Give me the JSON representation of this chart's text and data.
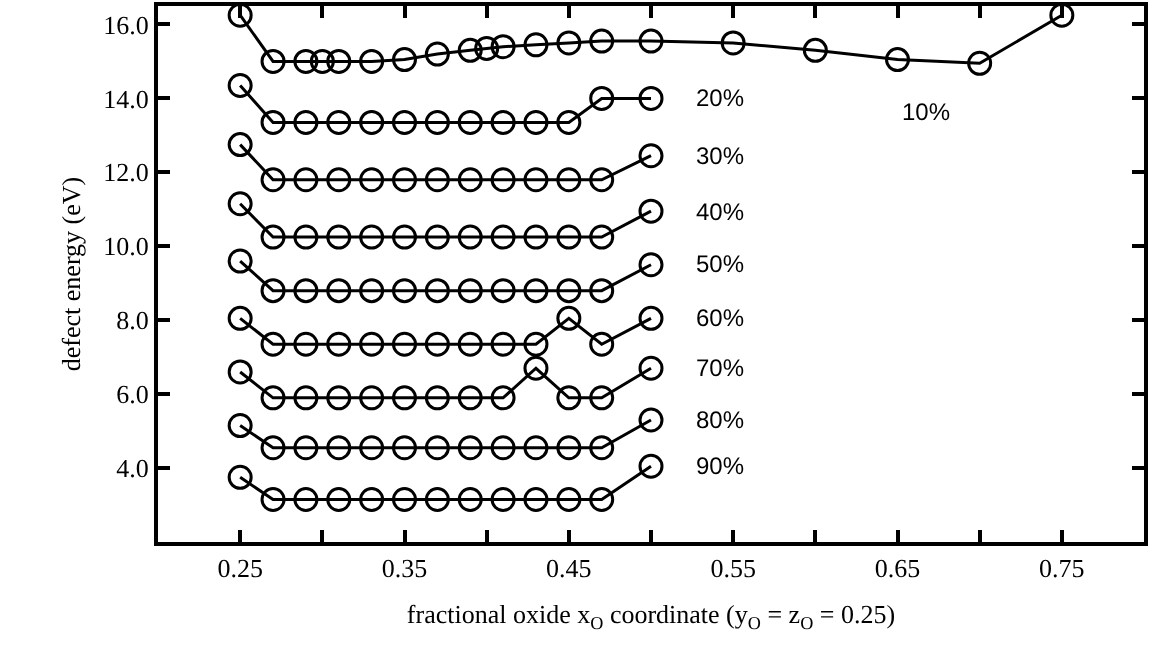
{
  "chart_data": {
    "type": "line",
    "xlabel": "fractional oxide x$_{O}$ coordinate (y$_{O}$ = z$_{O}$ = 0.25)",
    "ylabel": "defect energy (eV)",
    "xlim": [
      0.2,
      0.8
    ],
    "xticks": [
      {
        "value": 0.25,
        "label": "0.25"
      },
      {
        "value": 0.3,
        "label": null
      },
      {
        "value": 0.35,
        "label": "0.35"
      },
      {
        "value": 0.4,
        "label": null
      },
      {
        "value": 0.45,
        "label": "0.45"
      },
      {
        "value": 0.5,
        "label": null
      },
      {
        "value": 0.55,
        "label": "0.55"
      },
      {
        "value": 0.6,
        "label": null
      },
      {
        "value": 0.65,
        "label": "0.65"
      },
      {
        "value": 0.7,
        "label": null
      },
      {
        "value": 0.75,
        "label": "0.75"
      }
    ],
    "ylim": [
      2.0,
      16.5
    ],
    "yticks": [
      {
        "value": 4,
        "label": "4.0"
      },
      {
        "value": 6,
        "label": "6.0"
      },
      {
        "value": 8,
        "label": "8.0"
      },
      {
        "value": 10,
        "label": "10.0"
      },
      {
        "value": 12,
        "label": "12.0"
      },
      {
        "value": 14,
        "label": "14.0"
      },
      {
        "value": 16,
        "label": "16.0"
      }
    ],
    "grid": false,
    "legend": false,
    "marker": "circle",
    "line_style": "solid",
    "series": [
      {
        "name": "10%",
        "color": "#000000",
        "x": [
          0.25,
          0.27,
          0.29,
          0.3,
          0.31,
          0.33,
          0.35,
          0.37,
          0.39,
          0.4,
          0.41,
          0.43,
          0.45,
          0.47,
          0.5,
          0.55,
          0.6,
          0.65,
          0.7,
          0.75
        ],
        "values": [
          16.25,
          15.0,
          15.0,
          15.0,
          15.0,
          15.0,
          15.05,
          15.2,
          15.3,
          15.35,
          15.4,
          15.45,
          15.5,
          15.55,
          15.55,
          15.5,
          15.3,
          15.05,
          14.95,
          16.25
        ]
      },
      {
        "color": "#000000",
        "x": [
          0.25,
          0.27,
          0.29,
          0.31,
          0.33,
          0.35,
          0.37,
          0.39,
          0.41,
          0.43,
          0.45,
          0.47,
          0.5
        ],
        "name": "20%",
        "values": [
          14.35,
          13.35,
          13.35,
          13.35,
          13.35,
          13.35,
          13.35,
          13.35,
          13.35,
          13.35,
          13.35,
          14.0,
          14.0
        ]
      },
      {
        "color": "#000000",
        "x": [
          0.25,
          0.27,
          0.29,
          0.31,
          0.33,
          0.35,
          0.37,
          0.39,
          0.41,
          0.43,
          0.45,
          0.47,
          0.5
        ],
        "name": "30%",
        "values": [
          12.75,
          11.8,
          11.8,
          11.8,
          11.8,
          11.8,
          11.8,
          11.8,
          11.8,
          11.8,
          11.8,
          11.8,
          12.45
        ]
      },
      {
        "color": "#000000",
        "x": [
          0.25,
          0.27,
          0.29,
          0.31,
          0.33,
          0.35,
          0.37,
          0.39,
          0.41,
          0.43,
          0.45,
          0.47,
          0.5
        ],
        "name": "40%",
        "values": [
          11.15,
          10.25,
          10.25,
          10.25,
          10.25,
          10.25,
          10.25,
          10.25,
          10.25,
          10.25,
          10.25,
          10.25,
          10.95
        ]
      },
      {
        "color": "#000000",
        "x": [
          0.25,
          0.27,
          0.29,
          0.31,
          0.33,
          0.35,
          0.37,
          0.39,
          0.41,
          0.43,
          0.45,
          0.47,
          0.5
        ],
        "name": "50%",
        "values": [
          9.6,
          8.8,
          8.8,
          8.8,
          8.8,
          8.8,
          8.8,
          8.8,
          8.8,
          8.8,
          8.8,
          8.8,
          9.5
        ]
      },
      {
        "color": "#000000",
        "x": [
          0.25,
          0.27,
          0.29,
          0.31,
          0.33,
          0.35,
          0.37,
          0.39,
          0.41,
          0.43,
          0.45,
          0.47,
          0.5
        ],
        "name": "60%",
        "values": [
          8.05,
          7.35,
          7.35,
          7.35,
          7.35,
          7.35,
          7.35,
          7.35,
          7.35,
          7.35,
          8.05,
          7.35,
          8.05
        ]
      },
      {
        "color": "#000000",
        "x": [
          0.25,
          0.27,
          0.29,
          0.31,
          0.33,
          0.35,
          0.37,
          0.39,
          0.41,
          0.43,
          0.45,
          0.47,
          0.5
        ],
        "name": "70%",
        "values": [
          6.6,
          5.9,
          5.9,
          5.9,
          5.9,
          5.9,
          5.9,
          5.9,
          5.9,
          6.7,
          5.9,
          5.9,
          6.7
        ]
      },
      {
        "color": "#000000",
        "x": [
          0.25,
          0.27,
          0.29,
          0.31,
          0.33,
          0.35,
          0.37,
          0.39,
          0.41,
          0.43,
          0.45,
          0.47,
          0.5
        ],
        "name": "80%",
        "values": [
          5.15,
          4.55,
          4.55,
          4.55,
          4.55,
          4.55,
          4.55,
          4.55,
          4.55,
          4.55,
          4.55,
          4.55,
          5.3
        ]
      },
      {
        "color": "#000000",
        "x": [
          0.25,
          0.27,
          0.29,
          0.31,
          0.33,
          0.35,
          0.37,
          0.39,
          0.41,
          0.43,
          0.45,
          0.47,
          0.5
        ],
        "name": "90%",
        "values": [
          3.75,
          3.15,
          3.15,
          3.15,
          3.15,
          3.15,
          3.15,
          3.15,
          3.15,
          3.15,
          3.15,
          3.15,
          4.05
        ]
      }
    ]
  }
}
